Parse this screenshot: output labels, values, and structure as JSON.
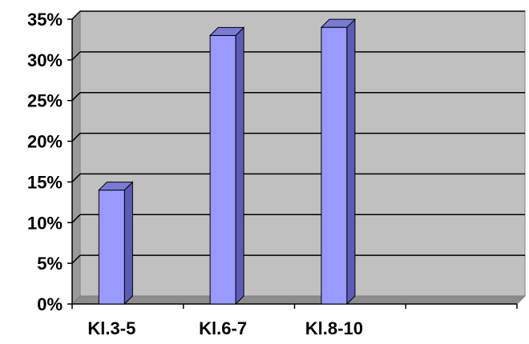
{
  "chart_data": {
    "type": "bar",
    "style": "3d",
    "categories": [
      "Kl.3-5",
      "Kl.6-7",
      "Kl.8-10",
      ""
    ],
    "values": [
      14,
      33,
      34,
      null
    ],
    "ylim": [
      0,
      35
    ],
    "yticks": [
      0,
      5,
      10,
      15,
      20,
      25,
      30,
      35
    ],
    "ytick_labels": [
      "0%",
      "5%",
      "10%",
      "15%",
      "20%",
      "25%",
      "30%",
      "35%"
    ],
    "title": "",
    "xlabel": "",
    "ylabel": "",
    "grid": true,
    "legend": "none",
    "colors": {
      "bar_front": "#9999ff",
      "bar_side": "#5c5cb8",
      "bar_top": "#7b7bd6",
      "plot_back": "#c0c0c0",
      "plot_side": "#9a9a9a",
      "plot_floor": "#8c8c8c",
      "gridline": "#000000"
    }
  }
}
